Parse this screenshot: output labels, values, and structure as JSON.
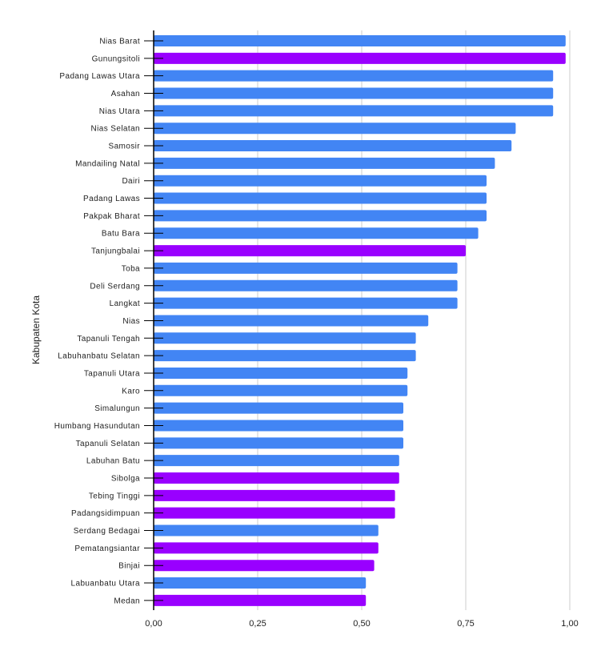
{
  "chart_data": {
    "type": "bar",
    "orientation": "horizontal",
    "title": "",
    "xlabel": "",
    "ylabel": "Kabupaten Kota",
    "xlim": [
      0,
      1
    ],
    "xticks": [
      "0,00",
      "0,25",
      "0,50",
      "0,75",
      "1,00"
    ],
    "xtick_values": [
      0,
      0.25,
      0.5,
      0.75,
      1.0
    ],
    "grid": true,
    "colors": {
      "kabupaten": "#4285f4",
      "kota": "#9900ff"
    },
    "categories": [
      "Nias Barat",
      "Gunungsitoli",
      "Padang Lawas Utara",
      "Asahan",
      "Nias Utara",
      "Nias Selatan",
      "Samosir",
      "Mandailing Natal",
      "Dairi",
      "Padang Lawas",
      "Pakpak Bharat",
      "Batu Bara",
      "Tanjungbalai",
      "Toba",
      "Deli Serdang",
      "Langkat",
      "Nias",
      "Tapanuli Tengah",
      "Labuhanbatu Selatan",
      "Tapanuli Utara",
      "Karo",
      "Simalungun",
      "Humbang Hasundutan",
      "Tapanuli Selatan",
      "Labuhan Batu",
      "Sibolga",
      "Tebing Tinggi",
      "Padangsidimpuan",
      "Serdang Bedagai",
      "Pematangsiantar",
      "Binjai",
      "Labuanbatu Utara",
      "Medan"
    ],
    "values": [
      0.99,
      0.99,
      0.96,
      0.96,
      0.96,
      0.87,
      0.86,
      0.82,
      0.8,
      0.8,
      0.8,
      0.78,
      0.75,
      0.73,
      0.73,
      0.73,
      0.66,
      0.63,
      0.63,
      0.61,
      0.61,
      0.6,
      0.6,
      0.6,
      0.59,
      0.59,
      0.58,
      0.58,
      0.54,
      0.54,
      0.53,
      0.51,
      0.51
    ],
    "types": [
      "kabupaten",
      "kota",
      "kabupaten",
      "kabupaten",
      "kabupaten",
      "kabupaten",
      "kabupaten",
      "kabupaten",
      "kabupaten",
      "kabupaten",
      "kabupaten",
      "kabupaten",
      "kota",
      "kabupaten",
      "kabupaten",
      "kabupaten",
      "kabupaten",
      "kabupaten",
      "kabupaten",
      "kabupaten",
      "kabupaten",
      "kabupaten",
      "kabupaten",
      "kabupaten",
      "kabupaten",
      "kota",
      "kota",
      "kota",
      "kabupaten",
      "kota",
      "kota",
      "kabupaten",
      "kota"
    ]
  }
}
